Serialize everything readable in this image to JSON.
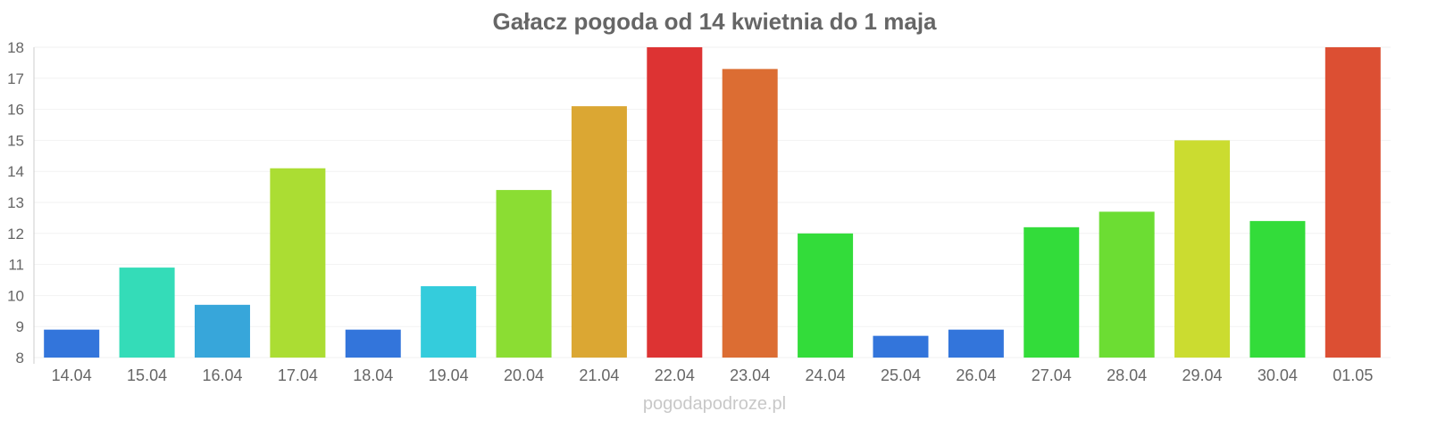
{
  "chart_data": {
    "type": "bar",
    "title": "Gałacz pogoda od 14 kwietnia do 1 maja",
    "xlabel": "",
    "ylabel": "",
    "ylim": [
      8,
      18
    ],
    "yticks": [
      "8",
      "9",
      "10",
      "11",
      "12",
      "13",
      "14",
      "15",
      "16",
      "17",
      "18"
    ],
    "grid": true,
    "categories": [
      "14.04",
      "15.04",
      "16.04",
      "17.04",
      "18.04",
      "19.04",
      "20.04",
      "21.04",
      "22.04",
      "23.04",
      "24.04",
      "25.04",
      "26.04",
      "27.04",
      "28.04",
      "29.04",
      "30.04",
      "01.05"
    ],
    "values": [
      8.9,
      10.9,
      9.7,
      14.1,
      8.9,
      10.3,
      13.4,
      16.1,
      18.0,
      17.3,
      12.0,
      8.7,
      8.9,
      12.2,
      12.7,
      15.0,
      12.4,
      18.0
    ],
    "colors": [
      "#3375db",
      "#34dcb8",
      "#37a6da",
      "#abdd33",
      "#3375db",
      "#34ccdc",
      "#8bdd33",
      "#dba733",
      "#dd3333",
      "#dc6d33",
      "#33dc3a",
      "#3375db",
      "#3375db",
      "#33dc3a",
      "#6cdd33",
      "#cbdc30",
      "#33dc3a",
      "#dc4f33"
    ]
  },
  "footer": "pogodapodroze.pl"
}
